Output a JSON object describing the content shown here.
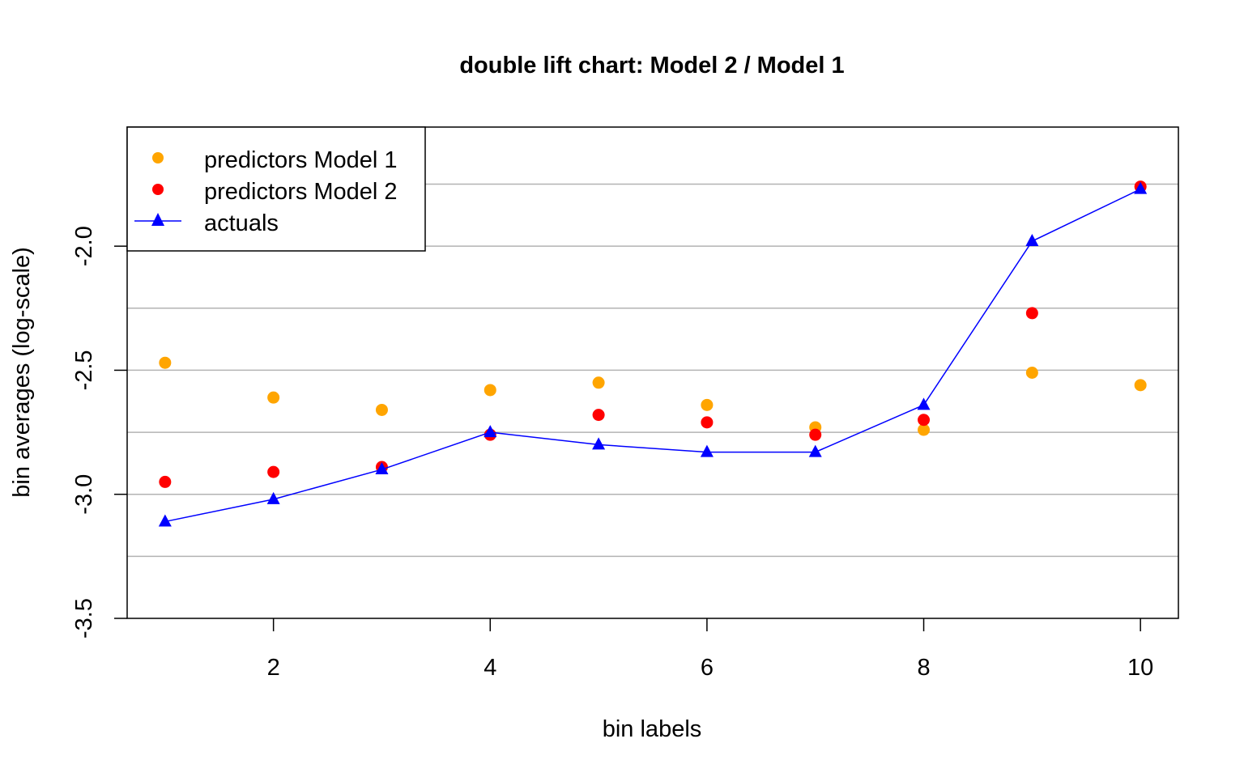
{
  "chart_data": {
    "type": "line",
    "title": "double lift chart: Model 2 / Model 1",
    "xlabel": "bin labels",
    "ylabel": "bin averages (log-scale)",
    "xlim": [
      0.65,
      10.35
    ],
    "ylim": [
      -3.5,
      -1.52
    ],
    "x_ticks": [
      2,
      4,
      6,
      8,
      10
    ],
    "x_tick_labels": [
      "2",
      "4",
      "6",
      "8",
      "10"
    ],
    "y_ticks": [
      -3.5,
      -3.0,
      -2.5,
      -2.0
    ],
    "y_tick_labels": [
      "-3.5",
      "-3.0",
      "-2.5",
      "-2.0"
    ],
    "gridlines_y": [
      -3.25,
      -3.0,
      -2.75,
      -2.5,
      -2.25,
      -2.0,
      -1.75
    ],
    "grid": "horizontal",
    "legend_position": "top-left",
    "x": [
      1,
      2,
      3,
      4,
      5,
      6,
      7,
      8,
      9,
      10
    ],
    "series": [
      {
        "name": "predictors Model 1",
        "style": "points",
        "marker": "circle",
        "color": "#FFA500",
        "values": [
          -2.47,
          -2.61,
          -2.66,
          -2.58,
          -2.55,
          -2.64,
          -2.73,
          -2.74,
          -2.51,
          -2.56
        ]
      },
      {
        "name": "predictors Model 2",
        "style": "points",
        "marker": "circle",
        "color": "#FF0000",
        "values": [
          -2.95,
          -2.91,
          -2.89,
          -2.76,
          -2.68,
          -2.71,
          -2.76,
          -2.7,
          -2.27,
          -1.76
        ]
      },
      {
        "name": "actuals",
        "style": "line+points",
        "marker": "triangle",
        "color": "#0000FF",
        "values": [
          -3.11,
          -3.02,
          -2.9,
          -2.75,
          -2.8,
          -2.83,
          -2.83,
          -2.64,
          -1.98,
          -1.77
        ]
      }
    ]
  }
}
